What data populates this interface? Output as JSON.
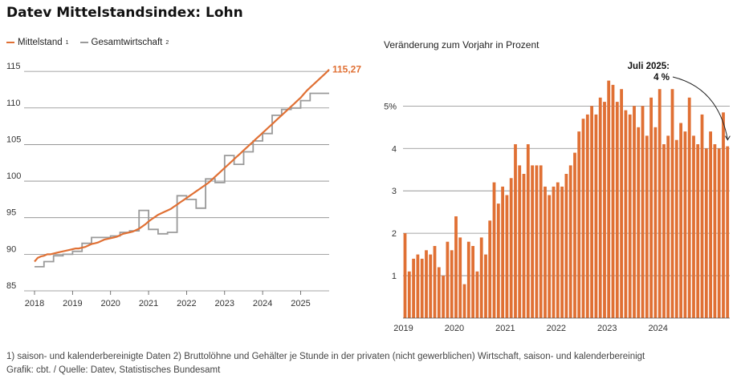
{
  "title": "Datev Mittelstandsindex: Lohn",
  "legend": [
    {
      "label": "Mittelstand",
      "sup": "1",
      "color": "#e07034"
    },
    {
      "label": "Gesamtwirtschaft",
      "sup": "2",
      "color": "#9a9a9a"
    }
  ],
  "right_subtitle": "Veränderung zum Vorjahr in Prozent",
  "footnote_1": "1) saison- und kalenderbereinigte Daten 2) Bruttolöhne und Gehälter je Stunde in der privaten (nicht gewerblichen) Wirtschaft, saison- und kalenderbereinigt",
  "footnote_2": "Grafik: cbt. / Quelle: Datev, Statistisches Bundesamt",
  "chart_data": [
    {
      "type": "line",
      "title": "",
      "ylim": [
        85,
        116
      ],
      "yticks": [
        "85",
        "90",
        "95",
        "100",
        "105",
        "110",
        "115"
      ],
      "xticks": [
        "2018",
        "2019",
        "2020",
        "2021",
        "2022",
        "2023",
        "2024",
        "2025"
      ],
      "end_label": "115,27",
      "grid": true,
      "series": [
        {
          "name": "Mittelstand",
          "color": "#e07034",
          "x_start": 2018.0,
          "x_step": 0.08333,
          "values": [
            89.0,
            89.5,
            89.7,
            89.8,
            90.0,
            90.0,
            90.1,
            90.2,
            90.3,
            90.4,
            90.5,
            90.6,
            90.7,
            90.8,
            90.8,
            90.9,
            91.0,
            91.2,
            91.4,
            91.5,
            91.6,
            91.8,
            92.0,
            92.1,
            92.2,
            92.3,
            92.4,
            92.6,
            92.8,
            92.9,
            93.0,
            93.1,
            93.3,
            93.5,
            93.8,
            94.1,
            94.5,
            94.8,
            95.1,
            95.4,
            95.6,
            95.8,
            96.0,
            96.2,
            96.5,
            96.8,
            97.1,
            97.4,
            97.7,
            98.0,
            98.3,
            98.6,
            98.9,
            99.2,
            99.5,
            99.8,
            100.2,
            100.6,
            101.0,
            101.4,
            101.8,
            102.2,
            102.6,
            103.0,
            103.4,
            103.8,
            104.2,
            104.6,
            105.0,
            105.4,
            105.8,
            106.2,
            106.6,
            107.0,
            107.4,
            107.8,
            108.2,
            108.6,
            109.0,
            109.4,
            109.8,
            110.2,
            110.6,
            111.0,
            111.4,
            111.9,
            112.4,
            112.8,
            113.2,
            113.6,
            114.0,
            114.4,
            114.8,
            115.27
          ]
        },
        {
          "name": "Gesamtwirtschaft",
          "color": "#9a9a9a",
          "x_start": 2018.0,
          "x_step": 0.25,
          "values": [
            88.3,
            89.0,
            89.8,
            90.0,
            90.4,
            91.5,
            92.3,
            92.3,
            92.5,
            93.0,
            93.2,
            96.0,
            93.4,
            92.8,
            93.0,
            98.0,
            97.5,
            96.3,
            100.3,
            99.8,
            103.5,
            102.3,
            104.0,
            105.5,
            106.5,
            109.0,
            109.8,
            110.0,
            111.0,
            112.0,
            112.0
          ]
        }
      ]
    },
    {
      "type": "bar",
      "title": "",
      "ylabel": "Veränderung zum Vorjahr in Prozent",
      "ylim": [
        0,
        5.8
      ],
      "yticks": [
        "1",
        "2",
        "3",
        "4",
        "5%"
      ],
      "xticks": [
        "2019",
        "2020",
        "2021",
        "2022",
        "2023",
        "2024"
      ],
      "x_start": 2019.0,
      "x_step": 0.08333,
      "annotation": {
        "line1": "Juli 2025:",
        "line2": "4 %"
      },
      "color": "#e07034",
      "values": [
        2.0,
        1.1,
        1.4,
        1.5,
        1.4,
        1.6,
        1.5,
        1.7,
        1.2,
        1.0,
        1.8,
        1.6,
        2.4,
        1.9,
        0.8,
        1.8,
        1.7,
        1.1,
        1.9,
        1.5,
        2.3,
        3.2,
        2.7,
        3.1,
        2.9,
        3.3,
        4.1,
        3.6,
        3.4,
        4.1,
        3.6,
        3.6,
        3.6,
        3.1,
        2.9,
        3.1,
        3.2,
        3.1,
        3.4,
        3.6,
        3.9,
        4.4,
        4.7,
        4.8,
        5.0,
        4.8,
        5.2,
        5.1,
        5.6,
        5.5,
        5.1,
        5.4,
        4.9,
        4.8,
        5.0,
        4.5,
        5.0,
        4.3,
        5.2,
        4.5,
        5.4,
        4.1,
        4.3,
        5.4,
        4.2,
        4.6,
        4.4,
        5.2,
        4.3,
        4.1,
        4.8,
        4.0,
        4.4,
        4.1,
        4.0,
        4.85,
        4.05
      ]
    }
  ]
}
